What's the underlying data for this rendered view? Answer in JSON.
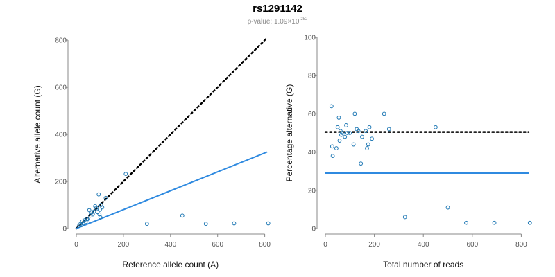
{
  "title": "rs1291142",
  "subtitle": {
    "prefix": "p-value: 1.09×10",
    "exponent": "-252"
  },
  "colors": {
    "point": "#1f78b4",
    "fit": "#2f8ae0",
    "reference": "#000000",
    "axis": "#888888"
  },
  "chart_data": [
    {
      "type": "scatter",
      "xlabel": "Reference allele count (A)",
      "ylabel": "Alternative allele count (G)",
      "xlim": [
        0,
        810
      ],
      "ylim": [
        0,
        800
      ],
      "xticks": [
        0,
        200,
        400,
        600,
        800
      ],
      "yticks": [
        0,
        200,
        400,
        600,
        800
      ],
      "points": [
        [
          12,
          12
        ],
        [
          18,
          20
        ],
        [
          22,
          15
        ],
        [
          25,
          30
        ],
        [
          30,
          22
        ],
        [
          35,
          35
        ],
        [
          40,
          28
        ],
        [
          45,
          42
        ],
        [
          50,
          40
        ],
        [
          55,
          78
        ],
        [
          60,
          55
        ],
        [
          65,
          68
        ],
        [
          70,
          60
        ],
        [
          75,
          72
        ],
        [
          80,
          95
        ],
        [
          85,
          88
        ],
        [
          90,
          70
        ],
        [
          95,
          145
        ],
        [
          98,
          60
        ],
        [
          100,
          80
        ],
        [
          102,
          48
        ],
        [
          105,
          100
        ],
        [
          110,
          90
        ],
        [
          125,
          130
        ],
        [
          210,
          232
        ],
        [
          300,
          20
        ],
        [
          450,
          55
        ],
        [
          550,
          20
        ],
        [
          670,
          22
        ],
        [
          815,
          22
        ]
      ],
      "lines": [
        {
          "name": "expected 1:1",
          "style": "dotted",
          "x": [
            0,
            810
          ],
          "y": [
            0,
            810
          ]
        },
        {
          "name": "fit",
          "style": "solid",
          "x": [
            0,
            810
          ],
          "y": [
            0,
            325
          ]
        }
      ]
    },
    {
      "type": "scatter",
      "xlabel": "Total number of reads",
      "ylabel": "Percentage alternative (G)",
      "xlim": [
        0,
        830
      ],
      "ylim": [
        0,
        100
      ],
      "xticks": [
        0,
        200,
        400,
        600,
        800
      ],
      "yticks": [
        0,
        20,
        40,
        60,
        80,
        100
      ],
      "points": [
        [
          25,
          64
        ],
        [
          28,
          43
        ],
        [
          30,
          38
        ],
        [
          45,
          42
        ],
        [
          50,
          53
        ],
        [
          55,
          58
        ],
        [
          58,
          46
        ],
        [
          62,
          51
        ],
        [
          65,
          49
        ],
        [
          70,
          50
        ],
        [
          80,
          48
        ],
        [
          85,
          54
        ],
        [
          90,
          50
        ],
        [
          100,
          50
        ],
        [
          115,
          44
        ],
        [
          120,
          60
        ],
        [
          128,
          52
        ],
        [
          135,
          51
        ],
        [
          145,
          34
        ],
        [
          150,
          48
        ],
        [
          165,
          51
        ],
        [
          170,
          42
        ],
        [
          175,
          44
        ],
        [
          180,
          53
        ],
        [
          190,
          47
        ],
        [
          240,
          60
        ],
        [
          260,
          52
        ],
        [
          450,
          53
        ],
        [
          325,
          6
        ],
        [
          500,
          11
        ],
        [
          575,
          3
        ],
        [
          690,
          3
        ],
        [
          835,
          3
        ]
      ],
      "lines": [
        {
          "name": "expected 50%",
          "style": "dotted",
          "x": [
            0,
            830
          ],
          "y": [
            50.5,
            50.5
          ]
        },
        {
          "name": "fit",
          "style": "solid",
          "x": [
            0,
            830
          ],
          "y": [
            29,
            29
          ]
        }
      ]
    }
  ]
}
